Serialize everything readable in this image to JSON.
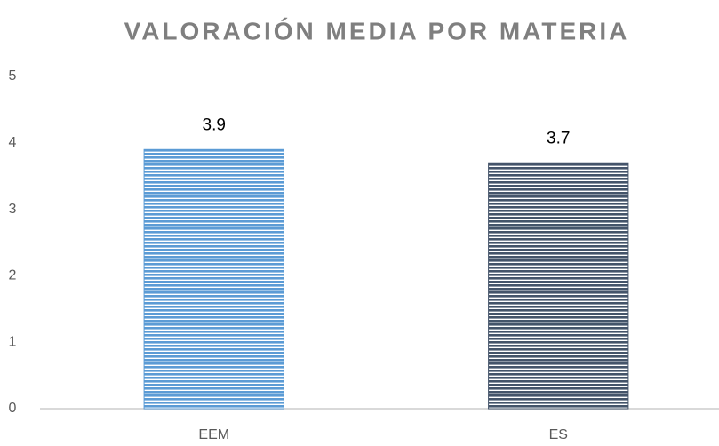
{
  "chart_data": {
    "type": "bar",
    "title": "VALORACIÓN MEDIA POR MATERIA",
    "categories": [
      "EEM",
      "ES"
    ],
    "values": [
      3.9,
      3.7
    ],
    "colors": [
      "#5b9bd5",
      "#44546a"
    ],
    "ylim": [
      0,
      5
    ],
    "yticks": [
      0,
      1,
      2,
      3,
      4,
      5
    ],
    "grid": false
  }
}
